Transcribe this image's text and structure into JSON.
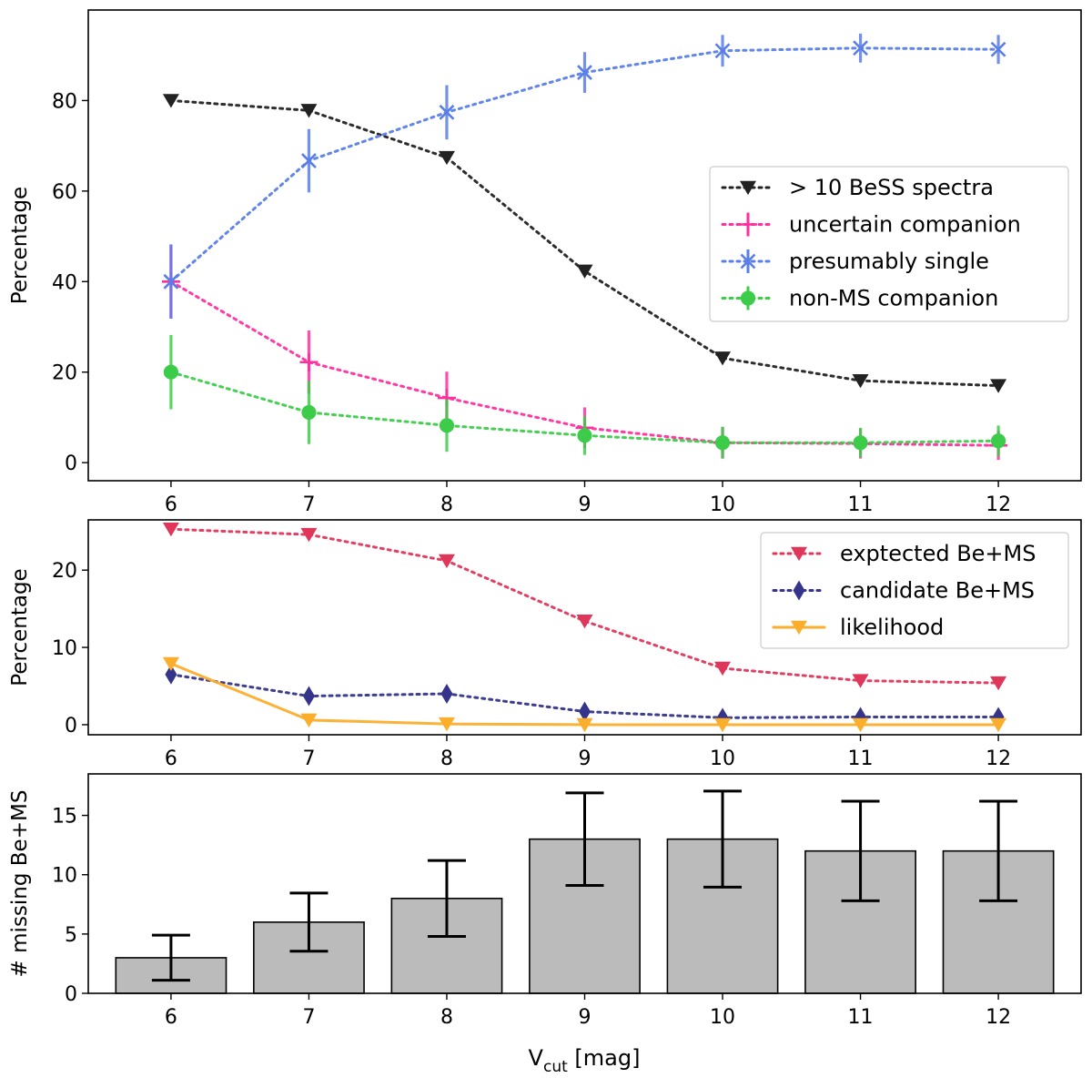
{
  "chart_data": [
    {
      "type": "line",
      "ylabel": "Percentage",
      "xlabel": "",
      "ylim": [
        -4,
        100
      ],
      "xlim": [
        5.4,
        12.6
      ],
      "xticks": [
        6,
        7,
        8,
        9,
        10,
        11,
        12
      ],
      "yticks": [
        0,
        20,
        40,
        60,
        80
      ],
      "legend_position": "center-right",
      "series": [
        {
          "key": "bess",
          "name": "> 10 BeSS spectra",
          "color": "#222222",
          "marker": "triangle-down",
          "x": [
            6,
            7,
            8,
            9,
            10,
            11,
            12
          ],
          "values": [
            80,
            77.8,
            67.4,
            42.3,
            23.1,
            18.1,
            17.0
          ]
        },
        {
          "key": "uncertain",
          "name": "uncertain companion",
          "color": "#ff2fa0",
          "marker": "plus",
          "x": [
            6,
            7,
            8,
            9,
            10,
            11,
            12
          ],
          "values": [
            40,
            22.2,
            14.3,
            7.7,
            4.4,
            4.2,
            3.8
          ],
          "errors": [
            8.2,
            7.0,
            5.8,
            4.5,
            3.5,
            3.3,
            3.2
          ]
        },
        {
          "key": "single",
          "name": "presumably single",
          "color": "#5a7ee8",
          "marker": "x",
          "x": [
            6,
            7,
            8,
            9,
            10,
            11,
            12
          ],
          "values": [
            40,
            66.7,
            77.4,
            86.2,
            91.0,
            91.6,
            91.3
          ],
          "errors": [
            8.2,
            7.0,
            6.0,
            4.5,
            3.5,
            3.2,
            3.2
          ]
        },
        {
          "key": "nonms",
          "name": "non-MS companion",
          "color": "#3dcc4a",
          "marker": "circle",
          "x": [
            6,
            7,
            8,
            9,
            10,
            11,
            12
          ],
          "values": [
            20,
            11.1,
            8.2,
            6.0,
            4.4,
            4.4,
            4.8
          ],
          "errors": [
            8.2,
            7.0,
            5.8,
            4.3,
            3.5,
            3.3,
            3.4
          ]
        }
      ]
    },
    {
      "type": "line",
      "ylabel": "Percentage",
      "xlabel": "",
      "ylim": [
        -1.3,
        26.5
      ],
      "xlim": [
        5.4,
        12.6
      ],
      "xticks": [
        6,
        7,
        8,
        9,
        10,
        11,
        12
      ],
      "yticks": [
        0,
        10,
        20
      ],
      "legend_position": "top-right",
      "series": [
        {
          "key": "expected",
          "name": "exptected Be+MS",
          "color": "#e0365a",
          "marker": "triangle-down",
          "style": "dotted",
          "x": [
            6,
            7,
            8,
            9,
            10,
            11,
            12
          ],
          "values": [
            25.3,
            24.6,
            21.2,
            13.4,
            7.3,
            5.7,
            5.4
          ]
        },
        {
          "key": "candidate",
          "name": "candidate Be+MS",
          "color": "#34348a",
          "marker": "diamond",
          "style": "dotted",
          "x": [
            6,
            7,
            8,
            9,
            10,
            11,
            12
          ],
          "values": [
            6.5,
            3.7,
            4.0,
            1.7,
            0.9,
            1.0,
            1.0
          ]
        },
        {
          "key": "likelihood",
          "name": "likelihood",
          "color": "#fbae2c",
          "marker": "triangle-down",
          "style": "solid",
          "x": [
            6,
            7,
            8,
            9,
            10,
            11,
            12
          ],
          "values": [
            7.9,
            0.6,
            0.1,
            0.0,
            0.0,
            0.0,
            0.0
          ]
        }
      ]
    },
    {
      "type": "bar",
      "ylabel": "# missing Be+MS",
      "xlabel": "V",
      "xlabel_sub": "cut",
      "xlabel_unit": " [mag]",
      "ylim": [
        0,
        18.5
      ],
      "xlim": [
        5.4,
        12.6
      ],
      "yticks": [
        0,
        5,
        10,
        15
      ],
      "categories": [
        6,
        7,
        8,
        9,
        10,
        11,
        12
      ],
      "values": [
        3,
        6,
        8,
        13,
        13,
        12,
        12
      ],
      "errors": [
        1.9,
        2.45,
        3.2,
        3.9,
        4.05,
        4.2,
        4.2
      ],
      "bar_color": "#bbbbbb",
      "edge_color": "#000000"
    }
  ]
}
